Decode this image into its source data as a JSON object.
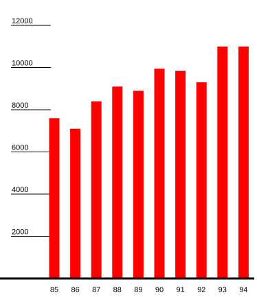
{
  "chart_data": {
    "type": "bar",
    "title": "",
    "xlabel": "",
    "ylabel": "",
    "categories": [
      "85",
      "86",
      "87",
      "88",
      "89",
      "90",
      "91",
      "92",
      "93",
      "94"
    ],
    "values": [
      7600,
      7100,
      8400,
      9100,
      8900,
      9950,
      9850,
      9300,
      11000,
      11000
    ],
    "ylim": [
      0,
      12000
    ],
    "yticks": [
      "2000",
      "4000",
      "6000",
      "8000",
      "10000",
      "12000"
    ],
    "grid": false,
    "legend": "none",
    "colors": {
      "bar": "#ff0000",
      "axis": "#000000"
    }
  }
}
